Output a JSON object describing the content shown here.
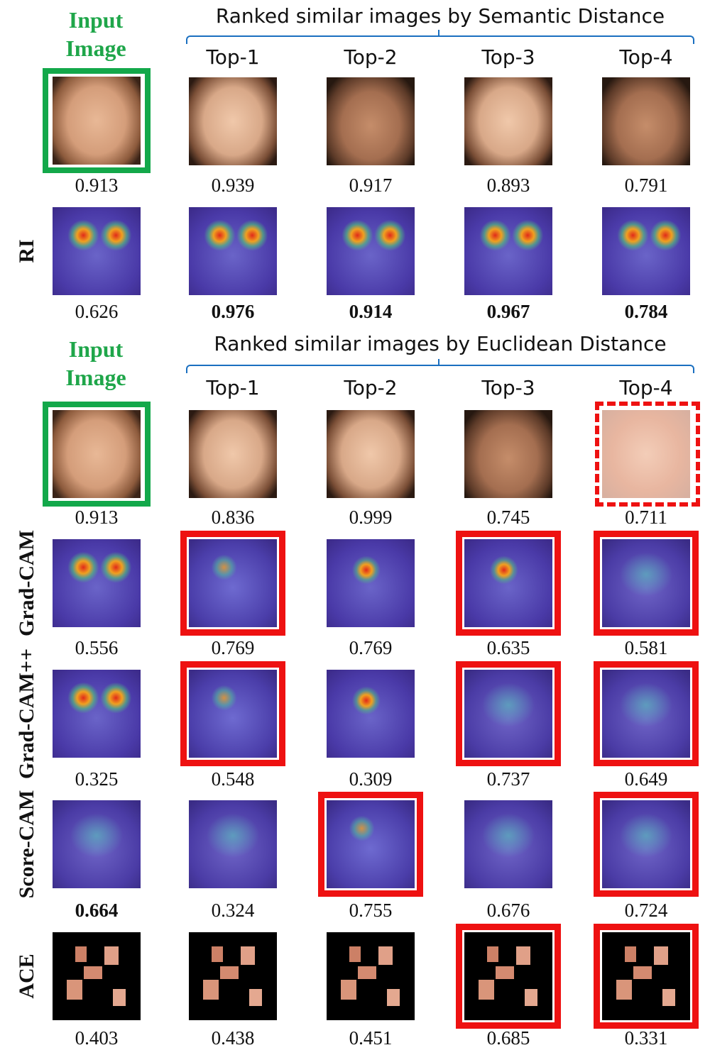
{
  "section1": {
    "input_title_line1": "Input",
    "input_title_line2": "Image",
    "header": "Ranked similar images by Semantic Distance",
    "columns": [
      "Top-1",
      "Top-2",
      "Top-3",
      "Top-4"
    ],
    "row_image_scores": [
      "0.913",
      "0.939",
      "0.917",
      "0.893",
      "0.791"
    ],
    "row_label": "RI",
    "row_heat_scores": [
      "0.626",
      "0.976",
      "0.914",
      "0.967",
      "0.784"
    ]
  },
  "section2": {
    "input_title_line1": "Input",
    "input_title_line2": "Image",
    "header": "Ranked similar images by Euclidean Distance",
    "columns": [
      "Top-1",
      "Top-2",
      "Top-3",
      "Top-4"
    ],
    "row_image_scores": [
      "0.913",
      "0.836",
      "0.999",
      "0.745",
      "0.711"
    ],
    "rows": [
      {
        "label": "Grad-CAM",
        "scores": [
          "0.556",
          "0.769",
          "0.769",
          "0.635",
          "0.581"
        ]
      },
      {
        "label": "Grad-CAM++",
        "scores": [
          "0.325",
          "0.548",
          "0.309",
          "0.737",
          "0.649"
        ]
      },
      {
        "label": "Score-CAM",
        "scores": [
          "0.664",
          "0.324",
          "0.755",
          "0.676",
          "0.724"
        ]
      },
      {
        "label": "ACE",
        "scores": [
          "0.403",
          "0.438",
          "0.451",
          "0.685",
          "0.331"
        ]
      }
    ]
  },
  "colors": {
    "green": "#13a84a",
    "red": "#ee1111",
    "bracket_blue": "#1a6fc0"
  }
}
